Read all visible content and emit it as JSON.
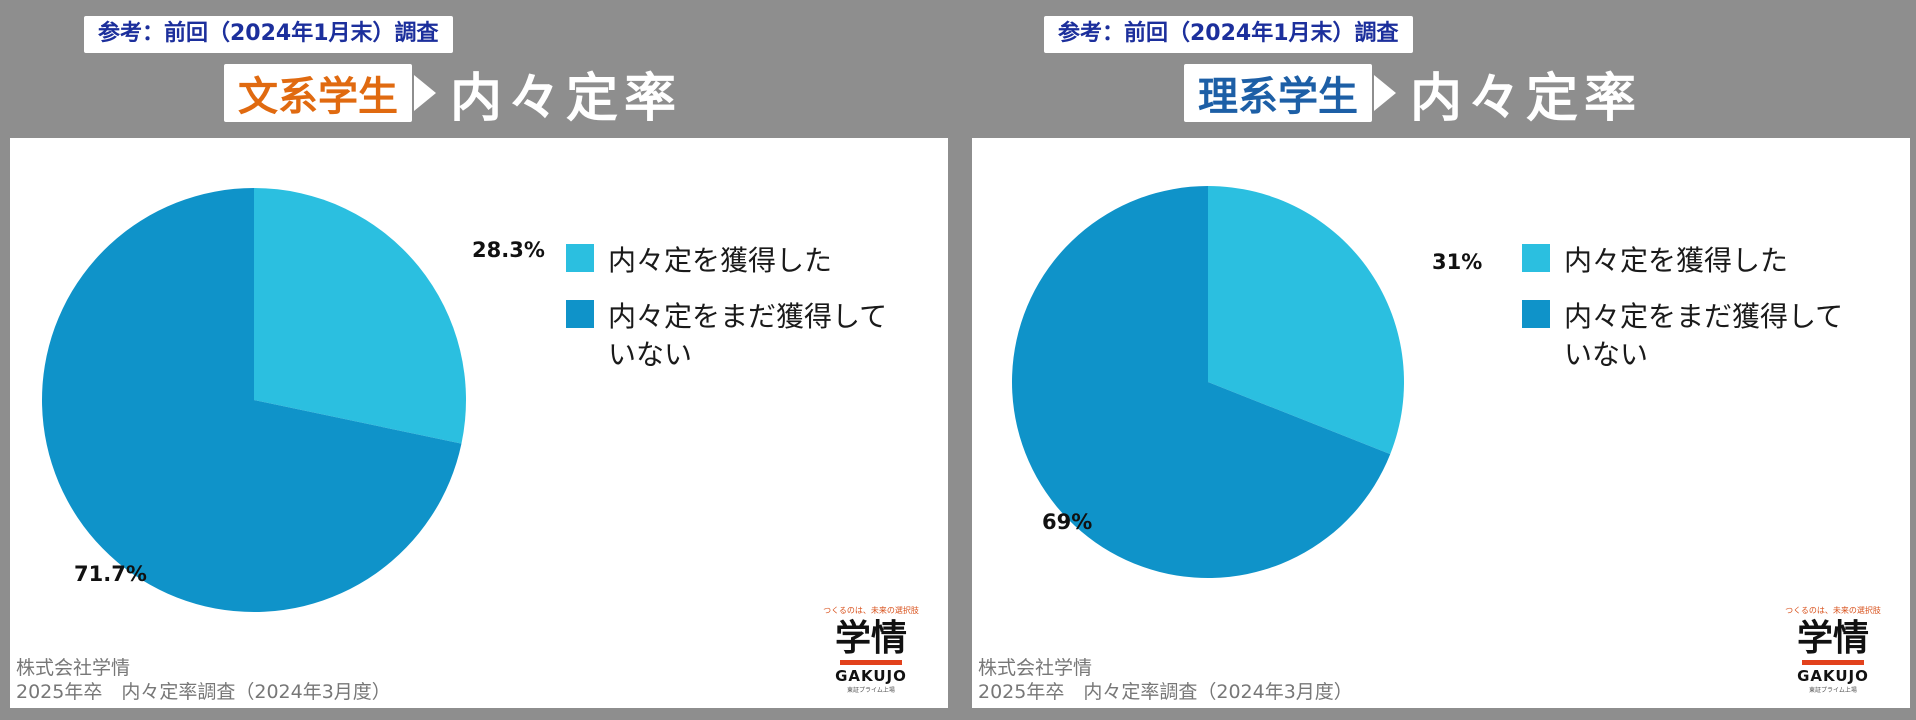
{
  "colors": {
    "background": "#8e8e8e",
    "acquired": "#2bbfe0",
    "not_acquired": "#0f93c9",
    "humanities_accent": "#e06a10",
    "science_accent": "#1d5fa6",
    "ref_badge_text": "#1c2f9c"
  },
  "icons": [
    "arrow-right-icon",
    "gakujo-logo"
  ],
  "panels": [
    {
      "ref_badge": "参考：前回（2024年1月末）調査",
      "category": "文系学生",
      "title": "内々定率",
      "legend": [
        {
          "label": "内々定を獲得した"
        },
        {
          "label": "内々定をまだ獲得していない"
        }
      ],
      "slice_labels": [
        "28.3%",
        "71.7%"
      ],
      "source_line1": "株式会社学情",
      "source_line2": "2025年卒　内々定率調査（2024年3月度）",
      "logo": {
        "tagline": "つくるのは、未来の選択肢",
        "kanji": "学情",
        "latin": "GAKUJO",
        "sub": "東証プライム上場"
      }
    },
    {
      "ref_badge": "参考：前回（2024年1月末）調査",
      "category": "理系学生",
      "title": "内々定率",
      "legend": [
        {
          "label": "内々定を獲得した"
        },
        {
          "label": "内々定をまだ獲得していない"
        }
      ],
      "slice_labels": [
        "31%",
        "69%"
      ],
      "source_line1": "株式会社学情",
      "source_line2": "2025年卒　内々定率調査（2024年3月度）",
      "logo": {
        "tagline": "つくるのは、未来の選択肢",
        "kanji": "学情",
        "latin": "GAKUJO",
        "sub": "東証プライム上場"
      }
    }
  ],
  "chart_data": [
    {
      "type": "pie",
      "title": "文系学生 内々定率",
      "categories": [
        "内々定を獲得した",
        "内々定をまだ獲得していない"
      ],
      "values": [
        28.3,
        71.7
      ],
      "colors": [
        "#2bbfe0",
        "#0f93c9"
      ],
      "legend": "right"
    },
    {
      "type": "pie",
      "title": "理系学生 内々定率",
      "categories": [
        "内々定を獲得した",
        "内々定をまだ獲得していない"
      ],
      "values": [
        31,
        69
      ],
      "colors": [
        "#2bbfe0",
        "#0f93c9"
      ],
      "legend": "right"
    }
  ]
}
